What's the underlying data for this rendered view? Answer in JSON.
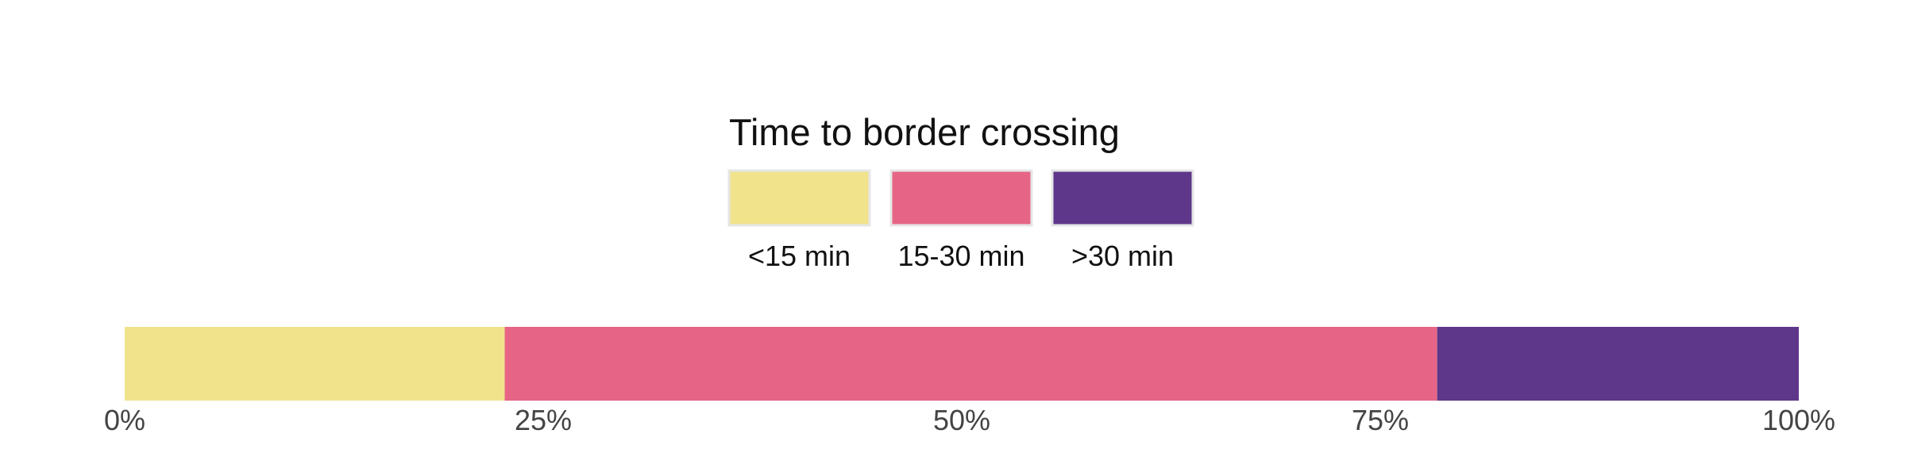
{
  "chart_data": {
    "type": "bar",
    "orientation": "horizontal",
    "stacked": true,
    "normalized": true,
    "legend": {
      "title": "Time to border crossing",
      "placement": "top-center"
    },
    "series": [
      {
        "name": "<15 min",
        "value": 0.227,
        "color": "#F0E38C"
      },
      {
        "name": "15-30 min",
        "value": 0.557,
        "color": "#E66586"
      },
      {
        "name": ">30 min",
        "value": 0.216,
        "color": "#5E378A"
      }
    ],
    "xlim": [
      0,
      1
    ],
    "ticks": [
      {
        "value": 0,
        "label": "0%"
      },
      {
        "value": 0.25,
        "label": "25%"
      },
      {
        "value": 0.5,
        "label": "50%"
      },
      {
        "value": 0.75,
        "label": "75%"
      },
      {
        "value": 1,
        "label": "100%"
      }
    ],
    "grid": false
  }
}
